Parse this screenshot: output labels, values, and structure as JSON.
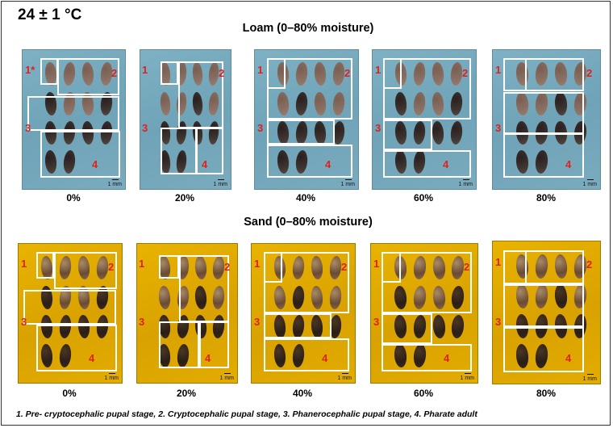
{
  "title": "24 ± 1 °C",
  "loam": {
    "title": "Loam (0–80% moisture)",
    "panels": [
      {
        "label": "0%",
        "scale": "1 mm",
        "markers": [
          "1*",
          "2",
          "3",
          "4"
        ]
      },
      {
        "label": "20%",
        "scale": "1 mm",
        "markers": [
          "1",
          "2",
          "3",
          "4"
        ]
      },
      {
        "label": "40%",
        "scale": "1 mm",
        "markers": [
          "1",
          "2",
          "3",
          "4"
        ]
      },
      {
        "label": "60%",
        "scale": "1 mm",
        "markers": [
          "1",
          "2",
          "3",
          "4"
        ]
      },
      {
        "label": "80%",
        "scale": "1 mm",
        "markers": [
          "1",
          "2",
          "3",
          "4"
        ]
      }
    ]
  },
  "sand": {
    "title": "Sand (0–80% moisture)",
    "panels": [
      {
        "label": "0%",
        "scale": "1 mm",
        "markers": [
          "1",
          "2",
          "3",
          "4"
        ]
      },
      {
        "label": "20%",
        "scale": "1 mm",
        "markers": [
          "1",
          "2",
          "3",
          "4"
        ]
      },
      {
        "label": "40%",
        "scale": "1 mm",
        "markers": [
          "1",
          "2",
          "3",
          "4"
        ]
      },
      {
        "label": "60%",
        "scale": "1 mm",
        "markers": [
          "1",
          "2",
          "3",
          "4"
        ]
      },
      {
        "label": "80%",
        "scale": "1 mm",
        "markers": [
          "1",
          "2",
          "3",
          "4"
        ]
      }
    ]
  },
  "caption": "1. Pre- cryptocephalic pupal stage,  2. Cryptocephalic pupal stage,  3. Phanerocephalic pupal stage, 4. Pharate adult",
  "colors": {
    "loam_background": "#7aabbf",
    "sand_background": "#e0a900",
    "stage_marker": "#e0201c",
    "stage_box": "#ffffff"
  }
}
